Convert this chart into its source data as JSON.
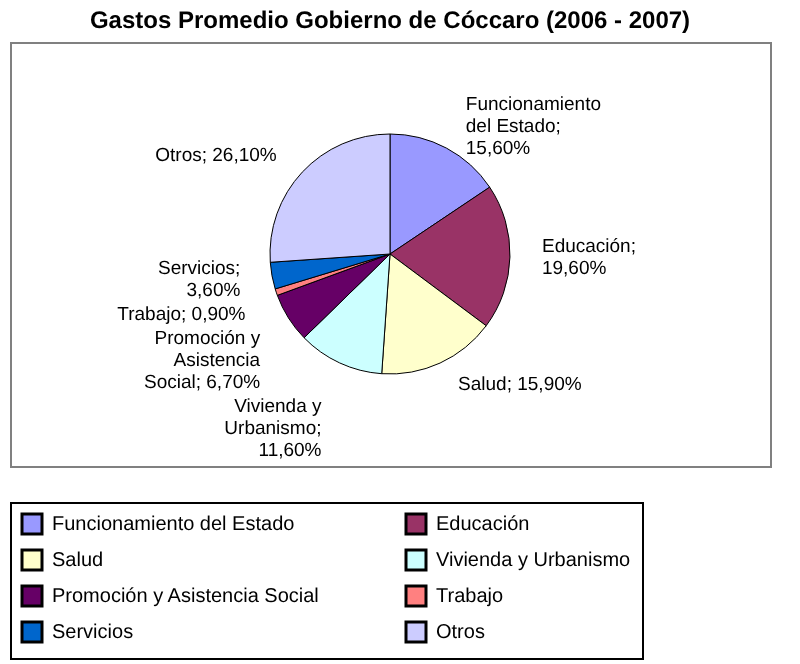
{
  "chart_data": {
    "type": "pie",
    "title": "Gastos Promedio Gobierno de Cóccaro (2006 - 2007)",
    "categories": [
      "Funcionamiento del Estado",
      "Educación",
      "Salud",
      "Vivienda y Urbanismo",
      "Promoción y Asistencia Social",
      "Trabajo",
      "Servicios",
      "Otros"
    ],
    "values": [
      15.6,
      19.6,
      15.9,
      11.6,
      6.7,
      0.9,
      3.6,
      26.1
    ],
    "value_labels": [
      "Funcionamiento del Estado; 15,60%",
      "Educación; 19,60%",
      "Salud; 15,90%",
      "Vivienda y Urbanismo; 11,60%",
      "Promoción y Asistencia Social; 6,70%",
      "Trabajo; 0,90%",
      "Servicios; 3,60%",
      "Otros; 26,10%"
    ],
    "colors": [
      "#9999ff",
      "#993366",
      "#ffffcc",
      "#ccffff",
      "#660066",
      "#ff8080",
      "#0066cc",
      "#ccccff"
    ],
    "legend": "bottom"
  }
}
